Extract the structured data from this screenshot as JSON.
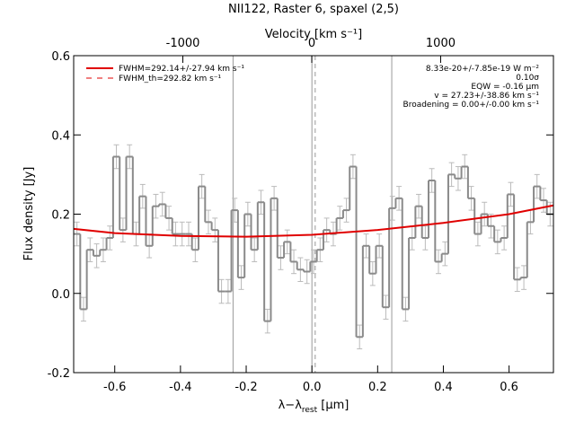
{
  "chart_data": {
    "type": "step",
    "title": "NII122, Raster 6, spaxel (2,5)",
    "xlabel": [
      "λ−λ",
      "rest",
      " [μm]"
    ],
    "ylabel": "Flux density [Jy]",
    "x2label": "Velocity [km s⁻¹]",
    "xlim": [
      -0.725,
      0.735
    ],
    "xticks": [
      -0.6,
      -0.4,
      -0.2,
      {
        "value": 0,
        "label": "0.0"
      },
      0.2,
      0.4,
      0.6
    ],
    "x2lim": [
      -1847,
      1875
    ],
    "x2ticks": [
      -1000,
      0,
      1000
    ],
    "ylim": [
      -0.2,
      0.6
    ],
    "yticks": [
      -0.2,
      {
        "value": 0,
        "label": "0.0"
      },
      0.2,
      0.4,
      0.6
    ],
    "color": "#8a8a8a",
    "error_color": "#bbbbbb",
    "x": [
      -0.715,
      -0.695,
      -0.675,
      -0.655,
      -0.635,
      -0.615,
      -0.595,
      -0.575,
      -0.555,
      -0.535,
      -0.515,
      -0.495,
      -0.475,
      -0.455,
      -0.435,
      -0.415,
      -0.395,
      -0.375,
      -0.355,
      -0.335,
      -0.315,
      -0.295,
      -0.275,
      -0.255,
      -0.235,
      -0.215,
      -0.195,
      -0.175,
      -0.155,
      -0.135,
      -0.115,
      -0.095,
      -0.075,
      -0.055,
      -0.035,
      -0.015,
      0.005,
      0.025,
      0.045,
      0.065,
      0.085,
      0.105,
      0.125,
      0.145,
      0.165,
      0.185,
      0.205,
      0.225,
      0.245,
      0.265,
      0.285,
      0.305,
      0.325,
      0.345,
      0.365,
      0.385,
      0.405,
      0.425,
      0.445,
      0.465,
      0.485,
      0.505,
      0.525,
      0.545,
      0.565,
      0.585,
      0.605,
      0.625,
      0.645,
      0.665,
      0.685,
      0.705,
      0.725
    ],
    "values": [
      0.15,
      -0.04,
      0.11,
      0.095,
      0.11,
      0.14,
      0.345,
      0.16,
      0.345,
      0.15,
      0.245,
      0.12,
      0.22,
      0.225,
      0.19,
      0.15,
      0.15,
      0.15,
      0.11,
      0.27,
      0.18,
      0.16,
      0.005,
      0.005,
      0.21,
      0.04,
      0.2,
      0.11,
      0.23,
      -0.07,
      0.24,
      0.09,
      0.13,
      0.08,
      0.06,
      0.055,
      0.08,
      0.11,
      0.16,
      0.15,
      0.19,
      0.21,
      0.32,
      -0.11,
      0.12,
      0.05,
      0.12,
      -0.035,
      0.215,
      0.24,
      -0.04,
      0.14,
      0.22,
      0.14,
      0.285,
      0.08,
      0.1,
      0.3,
      0.29,
      0.32,
      0.24,
      0.15,
      0.2,
      0.17,
      0.13,
      0.14,
      0.25,
      0.035,
      0.04,
      0.18,
      0.27,
      0.235,
      0.2
    ],
    "errors": [
      0.03,
      0.03,
      0.03,
      0.03,
      0.03,
      0.03,
      0.03,
      0.03,
      0.03,
      0.03,
      0.03,
      0.03,
      0.03,
      0.03,
      0.03,
      0.03,
      0.03,
      0.03,
      0.03,
      0.03,
      0.03,
      0.03,
      0.03,
      0.03,
      0.03,
      0.03,
      0.03,
      0.03,
      0.03,
      0.03,
      0.03,
      0.03,
      0.03,
      0.03,
      0.03,
      0.03,
      0.03,
      0.03,
      0.03,
      0.03,
      0.03,
      0.03,
      0.03,
      0.03,
      0.03,
      0.03,
      0.03,
      0.03,
      0.03,
      0.03,
      0.03,
      0.03,
      0.03,
      0.03,
      0.03,
      0.03,
      0.03,
      0.03,
      0.03,
      0.03,
      0.03,
      0.03,
      0.03,
      0.03,
      0.03,
      0.03,
      0.03,
      0.03,
      0.03,
      0.03,
      0.03,
      0.03,
      0.03
    ],
    "series": [
      {
        "name": "FWHM=292.14+/-27.94 km s⁻¹",
        "color": "#e00000",
        "dashed": false,
        "x": [
          -0.725,
          -0.6,
          -0.4,
          -0.2,
          0,
          0.2,
          0.4,
          0.6,
          0.735
        ],
        "values": [
          0.163,
          0.152,
          0.145,
          0.143,
          0.148,
          0.16,
          0.178,
          0.2,
          0.222
        ]
      },
      {
        "name": "FWHM_th=292.82 km s⁻¹",
        "color": "#e00000",
        "dashed": true
      }
    ],
    "vlines": [
      {
        "x": -0.24,
        "dashed": false
      },
      {
        "x": 0,
        "dashed": false
      },
      {
        "x": 0.01,
        "dashed": true
      },
      {
        "x": 0.243,
        "dashed": false
      }
    ],
    "vline_color": "#999999",
    "annotations": [
      "8.33e-20+/-7.85e-19 W m⁻²",
      "0.10σ",
      "EQW = -0.16 μm",
      "v = 27.23+/-38.86 km s⁻¹",
      "Broadening = 0.00+/-0.00 km s⁻¹"
    ]
  }
}
